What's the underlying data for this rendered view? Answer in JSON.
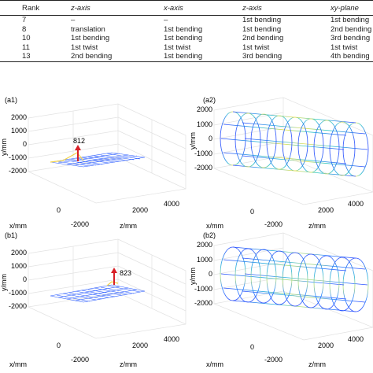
{
  "table": {
    "headers": [
      "Rank",
      "z-axis",
      "x-axis",
      "z-axis",
      "xy-plane"
    ],
    "rows": [
      [
        "7",
        "–",
        "–",
        "1st bending",
        "1st bending"
      ],
      [
        "8",
        "translation",
        "1st bending",
        "1st bending",
        "2nd bending"
      ],
      [
        "10",
        "1st bending",
        "1st bending",
        "2nd bending",
        "3rd bending"
      ],
      [
        "11",
        "1st twist",
        "1st twist",
        "1st twist",
        "1st twist"
      ],
      [
        "13",
        "2nd bending",
        "1st bending",
        "3rd bending",
        "4th bending"
      ]
    ]
  },
  "panels": {
    "a1": {
      "label": "(a1)",
      "peak": "812"
    },
    "a2": {
      "label": "(a2)"
    },
    "b1": {
      "label": "(b1)",
      "peak": "823"
    },
    "b2": {
      "label": "(b2)"
    }
  },
  "axes": {
    "ylabel": "y/mm",
    "xlabel": "x/mm",
    "zlabel": "z/mm",
    "yticks": [
      "2000",
      "1000",
      "0",
      "-1000",
      "-2000"
    ],
    "xticks": [
      "0",
      "-2000"
    ],
    "zticks": [
      "2000",
      "4000"
    ]
  },
  "colors": {
    "mesh_blue": "#2a5cff",
    "arrow": "#d81f26",
    "grid": "#e2e2e2"
  }
}
